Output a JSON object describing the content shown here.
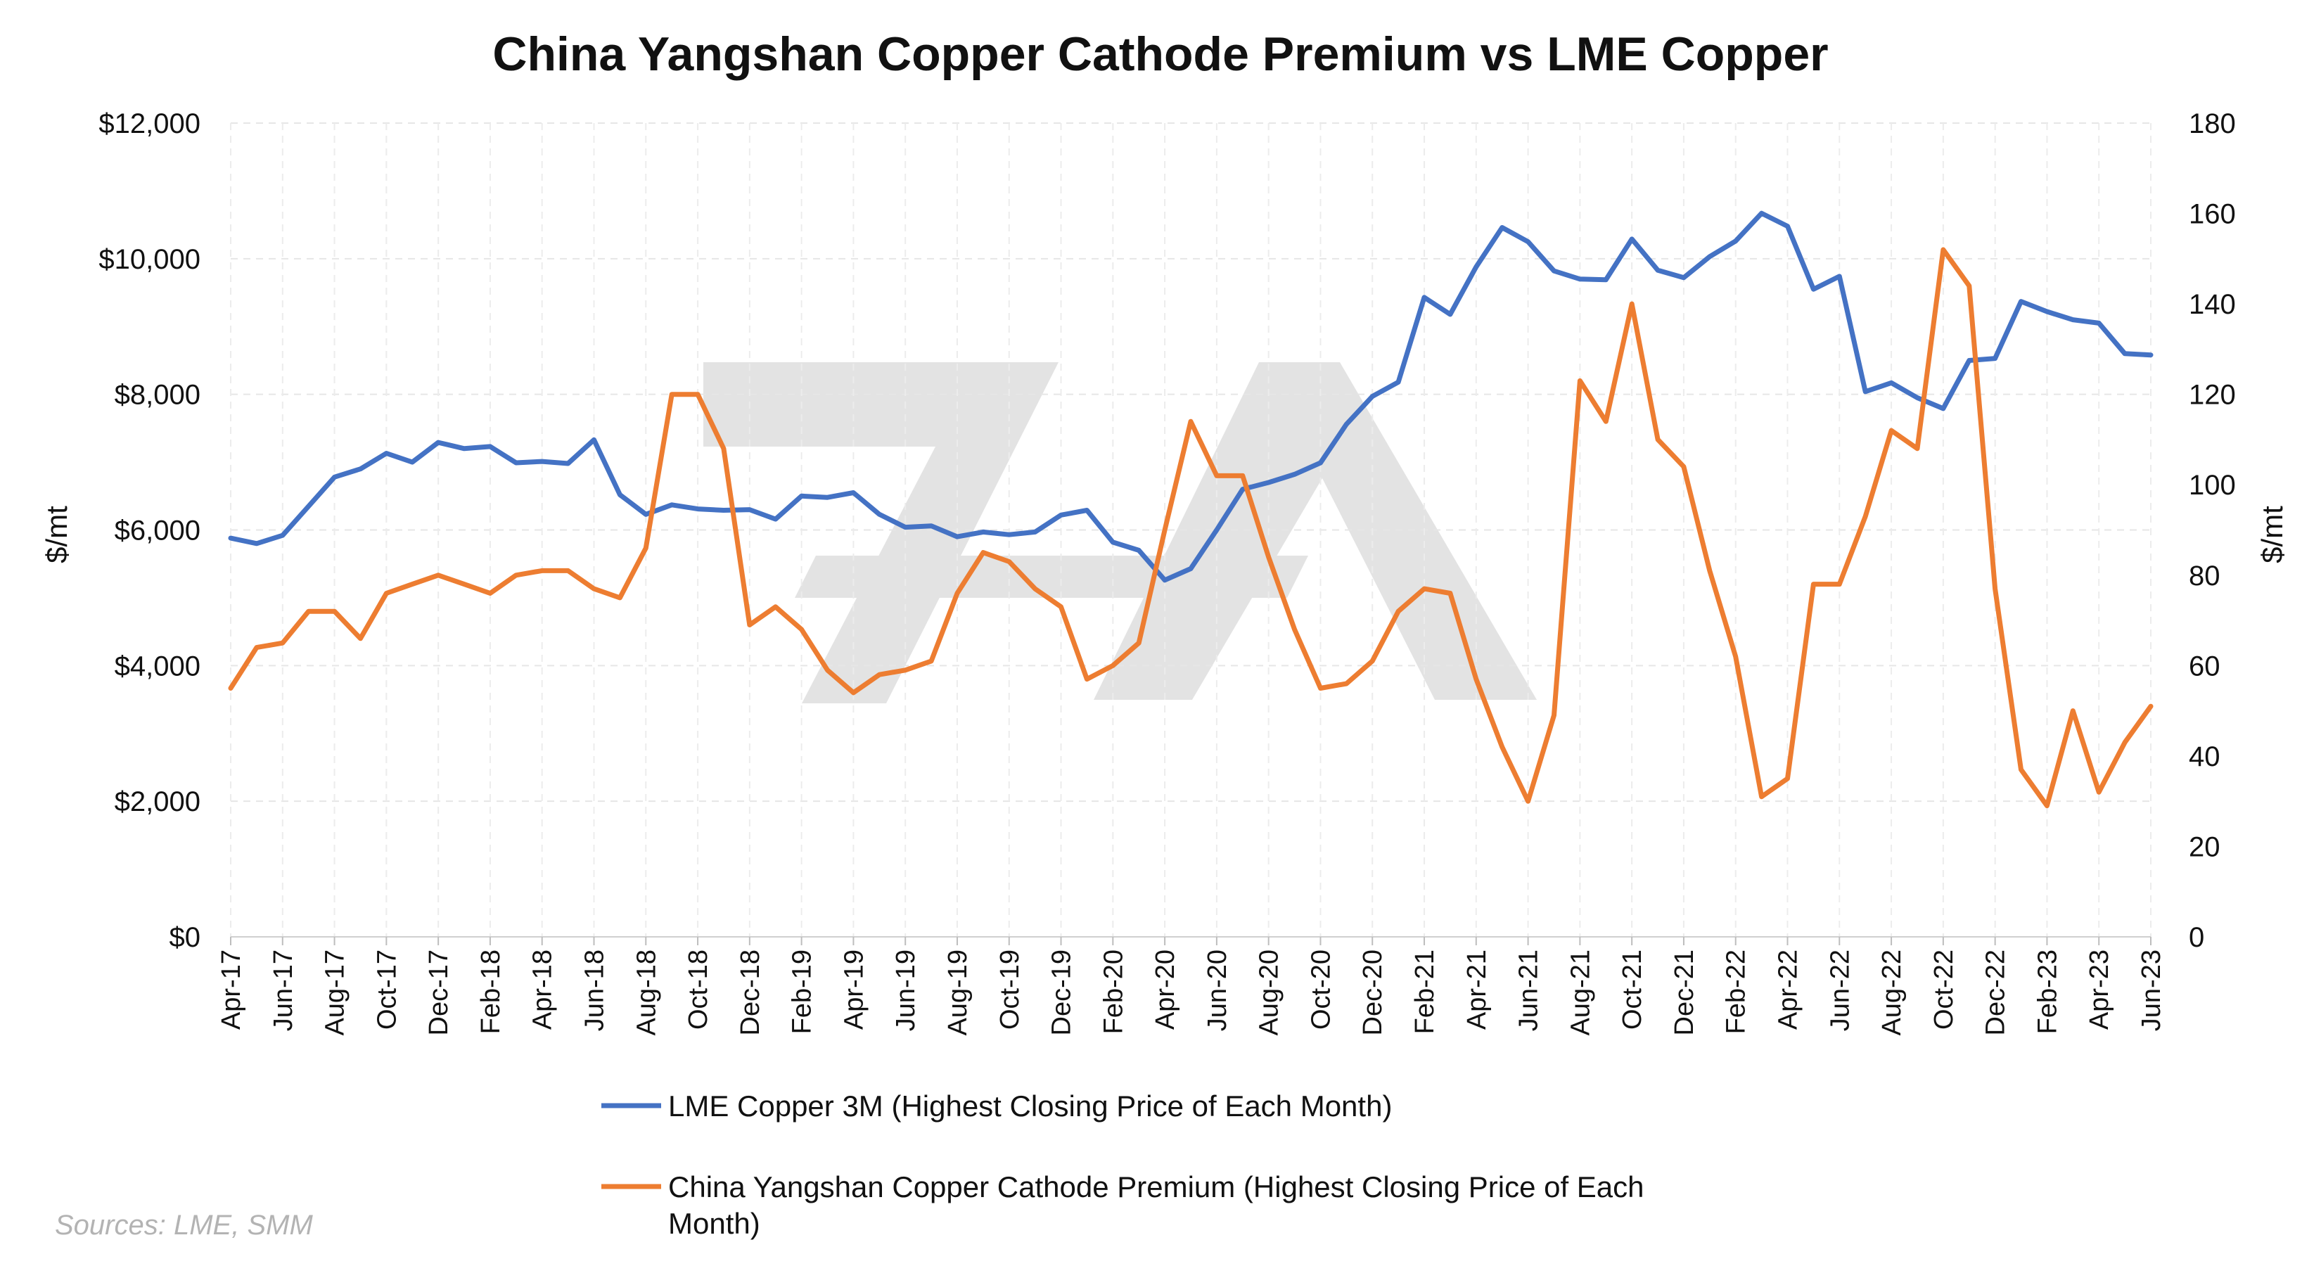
{
  "chart_data": {
    "type": "line",
    "title": "China Yangshan Copper Cathode Premium vs LME Copper",
    "ylabel_left": "$/mt",
    "ylabel_right": "$/mt",
    "ylim_left": [
      0,
      12000
    ],
    "ylim_right": [
      0,
      180
    ],
    "left_ticks": [
      "$0",
      "$2,000",
      "$4,000",
      "$6,000",
      "$8,000",
      "$10,000",
      "$12,000"
    ],
    "right_ticks": [
      "0",
      "20",
      "40",
      "60",
      "80",
      "100",
      "120",
      "140",
      "160",
      "180"
    ],
    "grid": true,
    "legend_position": "bottom",
    "x": [
      "Apr-17",
      "May-17",
      "Jun-17",
      "Jul-17",
      "Aug-17",
      "Sep-17",
      "Oct-17",
      "Nov-17",
      "Dec-17",
      "Jan-18",
      "Feb-18",
      "Mar-18",
      "Apr-18",
      "May-18",
      "Jun-18",
      "Jul-18",
      "Aug-18",
      "Sep-18",
      "Oct-18",
      "Nov-18",
      "Dec-18",
      "Jan-19",
      "Feb-19",
      "Mar-19",
      "Apr-19",
      "May-19",
      "Jun-19",
      "Jul-19",
      "Aug-19",
      "Sep-19",
      "Oct-19",
      "Nov-19",
      "Dec-19",
      "Jan-20",
      "Feb-20",
      "Mar-20",
      "Apr-20",
      "May-20",
      "Jun-20",
      "Jul-20",
      "Aug-20",
      "Sep-20",
      "Oct-20",
      "Nov-20",
      "Dec-20",
      "Jan-21",
      "Feb-21",
      "Mar-21",
      "Apr-21",
      "May-21",
      "Jun-21",
      "Jul-21",
      "Aug-21",
      "Sep-21",
      "Oct-21",
      "Nov-21",
      "Dec-21",
      "Jan-22",
      "Feb-22",
      "Mar-22",
      "Apr-22",
      "May-22",
      "Jun-22",
      "Jul-22",
      "Aug-22",
      "Sep-22",
      "Oct-22",
      "Nov-22",
      "Dec-22",
      "Jan-23",
      "Feb-23",
      "Mar-23",
      "Apr-23",
      "May-23",
      "Jun-23"
    ],
    "x_tick_labels": [
      "Apr-17",
      "Jun-17",
      "Aug-17",
      "Oct-17",
      "Dec-17",
      "Feb-18",
      "Apr-18",
      "Jun-18",
      "Aug-18",
      "Oct-18",
      "Dec-18",
      "Feb-19",
      "Apr-19",
      "Jun-19",
      "Aug-19",
      "Oct-19",
      "Dec-19",
      "Feb-20",
      "Apr-20",
      "Jun-20",
      "Aug-20",
      "Oct-20",
      "Dec-20",
      "Feb-21",
      "Apr-21",
      "Jun-21",
      "Aug-21",
      "Oct-21",
      "Dec-21",
      "Feb-22",
      "Apr-22",
      "Jun-22",
      "Aug-22",
      "Oct-22",
      "Dec-22",
      "Feb-23",
      "Apr-23",
      "Jun-23"
    ],
    "series": [
      {
        "name": "LME Copper 3M (Highest Closing Price of Each Month)",
        "axis": "left",
        "color": "#4472c4",
        "values": [
          5880,
          5800,
          5920,
          6350,
          6780,
          6900,
          7130,
          7000,
          7290,
          7200,
          7230,
          6990,
          7010,
          6980,
          7330,
          6520,
          6230,
          6370,
          6310,
          6290,
          6300,
          6160,
          6500,
          6480,
          6550,
          6230,
          6040,
          6060,
          5900,
          5970,
          5930,
          5970,
          6220,
          6290,
          5820,
          5700,
          5260,
          5430,
          6000,
          6600,
          6700,
          6820,
          6990,
          7560,
          7970,
          8180,
          9430,
          9180,
          9880,
          10460,
          10250,
          9820,
          9700,
          9690,
          10290,
          9830,
          9720,
          10030,
          10260,
          10670,
          10480,
          9550,
          9740,
          8040,
          8170,
          7950,
          7790,
          8500,
          8530,
          9370,
          9220,
          9100,
          9050,
          8600,
          8580
        ]
      },
      {
        "name": "China Yangshan Copper Cathode Premium  (Highest Closing Price of Each Month)",
        "axis": "right",
        "color": "#ed7d31",
        "values": [
          55,
          64,
          65,
          72,
          72,
          66,
          76,
          78,
          80,
          78,
          76,
          80,
          81,
          81,
          77,
          75,
          86,
          120,
          120,
          108,
          69,
          73,
          68,
          59,
          54,
          58,
          59,
          61,
          76,
          85,
          83,
          77,
          73,
          57,
          60,
          65,
          90,
          114,
          102,
          102,
          84,
          68,
          55,
          56,
          61,
          72,
          77,
          76,
          57,
          42,
          30,
          49,
          123,
          114,
          140,
          110,
          104,
          81,
          62,
          31,
          35,
          78,
          78,
          93,
          112,
          108,
          152,
          144,
          77,
          37,
          29,
          50,
          32,
          43,
          51
        ]
      }
    ],
    "source": "Sources: LME, SMM"
  }
}
